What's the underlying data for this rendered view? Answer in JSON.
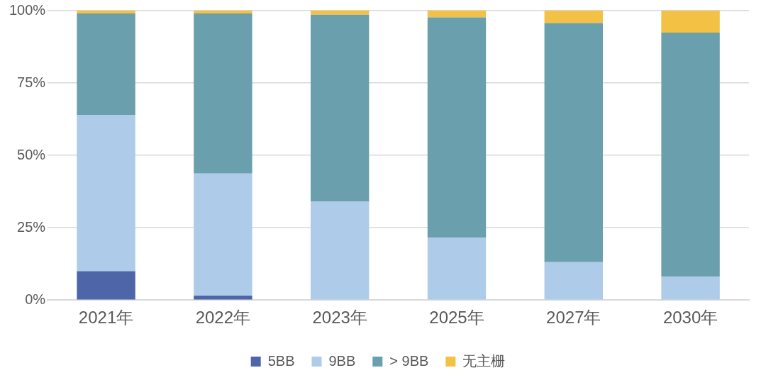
{
  "chart_data": {
    "type": "bar",
    "stacked": true,
    "categories": [
      "2021年",
      "2022年",
      "2023年",
      "2025年",
      "2027年",
      "2030年"
    ],
    "series": [
      {
        "name": "5BB",
        "color": "#4e65a8",
        "values": [
          10,
          1.5,
          0,
          0,
          0,
          0
        ]
      },
      {
        "name": "9BB",
        "color": "#aecbe9",
        "values": [
          54,
          42.2,
          34,
          21.5,
          13.1,
          8
        ]
      },
      {
        "name": "> 9BB",
        "color": "#6aa0ad",
        "values": [
          35,
          55.3,
          64.6,
          76.2,
          82.6,
          84.4
        ]
      },
      {
        "name": "无主栅",
        "color": "#f3c143",
        "values": [
          1,
          1,
          1.4,
          2.3,
          4.3,
          7.6
        ]
      }
    ],
    "ylim": [
      0,
      100
    ],
    "yticks": [
      {
        "value": 0,
        "label": "0%"
      },
      {
        "value": 25,
        "label": "25%"
      },
      {
        "value": 50,
        "label": "50%"
      },
      {
        "value": 75,
        "label": "75%"
      },
      {
        "value": 100,
        "label": "100%"
      }
    ],
    "grid": "y",
    "legend": "bottom"
  }
}
